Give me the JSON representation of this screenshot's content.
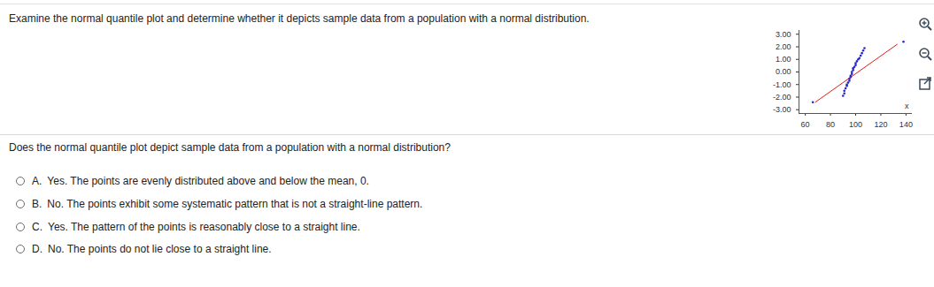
{
  "question": "Examine the normal quantile plot and determine whether it depicts sample data from a population with a normal distribution.",
  "chart_data": {
    "type": "scatter",
    "x_label": "x",
    "x": [
      66,
      90,
      91,
      91,
      92,
      93,
      93,
      94,
      95,
      95,
      96,
      96,
      97,
      97,
      98,
      98,
      99,
      100,
      100,
      101,
      102,
      103,
      104,
      105,
      106,
      107,
      138
    ],
    "y": [
      -2.4,
      -1.9,
      -1.7,
      -1.5,
      -1.3,
      -1.1,
      -1.0,
      -0.85,
      -0.7,
      -0.55,
      -0.4,
      -0.3,
      -0.15,
      0,
      0.15,
      0.3,
      0.4,
      0.55,
      0.7,
      0.85,
      1.0,
      1.1,
      1.3,
      1.5,
      1.7,
      1.9,
      2.4
    ],
    "color": "#2323d8",
    "marker": "circle",
    "reference_line": {
      "x": [
        68,
        133
      ],
      "y": [
        -2.4,
        2.2
      ],
      "color": "#e31a1c"
    },
    "xlim": [
      55,
      145
    ],
    "xticks": [
      60,
      80,
      100,
      120,
      140
    ],
    "ylim": [
      -3.3,
      3.3
    ],
    "yticks": [
      {
        "value": 3,
        "label": "3.00"
      },
      {
        "value": 2,
        "label": "2.00"
      },
      {
        "value": 1,
        "label": "1.00"
      },
      {
        "value": 0,
        "label": "0.00"
      },
      {
        "value": -1,
        "label": "-1.00"
      },
      {
        "value": -2,
        "label": "-2.00"
      },
      {
        "value": -3,
        "label": "-3.00"
      }
    ]
  },
  "prompt": "Does the normal quantile plot depict sample data from a population with a normal distribution?",
  "options": [
    {
      "label": "A.",
      "text": "Yes. The points are evenly distributed above and below the mean, 0."
    },
    {
      "label": "B.",
      "text": "No. The points exhibit some systematic pattern that is not a straight-line pattern."
    },
    {
      "label": "C.",
      "text": "Yes. The pattern of the points is reasonably close to a straight line."
    },
    {
      "label": "D.",
      "text": "No. The points do not lie close to a straight line."
    }
  ]
}
